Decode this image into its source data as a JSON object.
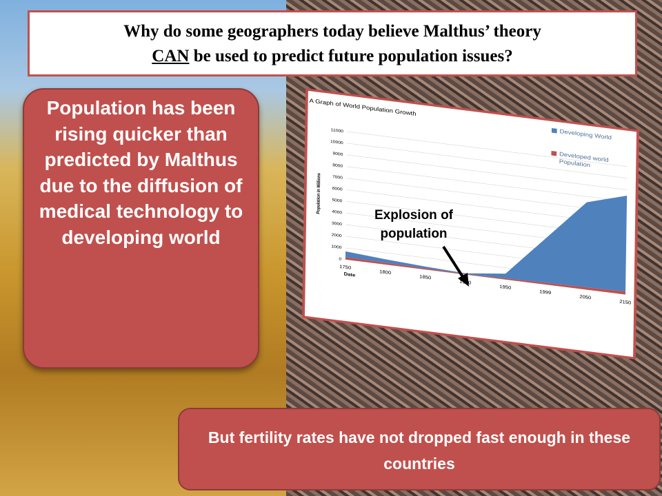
{
  "title": {
    "before": "Why do some geographers today believe Malthus’ theory",
    "emphasis": "CAN",
    "after": "be used to predict future population issues?"
  },
  "left_box": "Population has been rising quicker than predicted by Malthus due to the diffusion of medical technology to developing world",
  "chart": {
    "type": "area",
    "title": "A Graph of World Population Growth",
    "y_label": "Population in Millions",
    "x_label": "Date",
    "categories": [
      "1750",
      "1800",
      "1850",
      "1900",
      "1950",
      "1999",
      "2050",
      "2150"
    ],
    "series": [
      {
        "name": "Developed world Population",
        "color": "#c0504d",
        "values": [
          200,
          150,
          100,
          50,
          100,
          150,
          200,
          250
        ]
      },
      {
        "name": "Developing World",
        "color": "#4f81bd",
        "values": [
          500,
          300,
          150,
          50,
          400,
          3850,
          7300,
          8250
        ]
      }
    ],
    "stacked": true,
    "ylim": [
      0,
      11000
    ],
    "yticks": [
      0,
      1000,
      2000,
      3000,
      4000,
      5000,
      6000,
      7000,
      8000,
      9000,
      10000,
      11000
    ],
    "grid": true
  },
  "annotation": "Explosion of population",
  "bottom_box": "But fertility rates have not dropped fast enough in these countries"
}
